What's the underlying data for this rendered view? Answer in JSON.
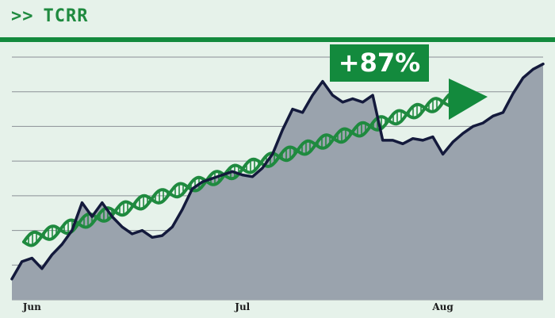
{
  "header": {
    "prefix": ">>",
    "ticker": "TCRR"
  },
  "badge": {
    "label": "+87%"
  },
  "colors": {
    "background": "#e6f2ea",
    "accent_green": "#138a3d",
    "line": "#141a3c",
    "area_fill": "#9aa3ad",
    "grid": "#8a8f96",
    "dna_green": "#1f8a3f"
  },
  "chart_data": {
    "type": "area",
    "title": "",
    "xlabel": "",
    "ylabel": "",
    "x_tick_labels": [
      "Jun",
      "Jul",
      "Aug"
    ],
    "x_tick_index": [
      2,
      23,
      43
    ],
    "grid": true,
    "y_axis_labels_visible": false,
    "ylim": [
      0,
      7
    ],
    "series": [
      {
        "values": [
          0.6,
          1.1,
          1.2,
          0.9,
          1.3,
          1.6,
          2.0,
          2.8,
          2.4,
          2.8,
          2.4,
          2.1,
          1.9,
          2.0,
          1.8,
          1.85,
          2.1,
          2.6,
          3.2,
          3.4,
          3.5,
          3.6,
          3.7,
          3.6,
          3.55,
          3.8,
          4.2,
          4.9,
          5.5,
          5.4,
          5.9,
          6.3,
          5.9,
          5.7,
          5.8,
          5.7,
          5.9,
          4.6,
          4.6,
          4.5,
          4.65,
          4.6,
          4.7,
          4.2,
          4.55,
          4.8,
          5.0,
          5.1,
          5.3,
          5.4,
          5.95,
          6.4,
          6.65,
          6.8
        ]
      }
    ],
    "annotation": "+87%"
  }
}
